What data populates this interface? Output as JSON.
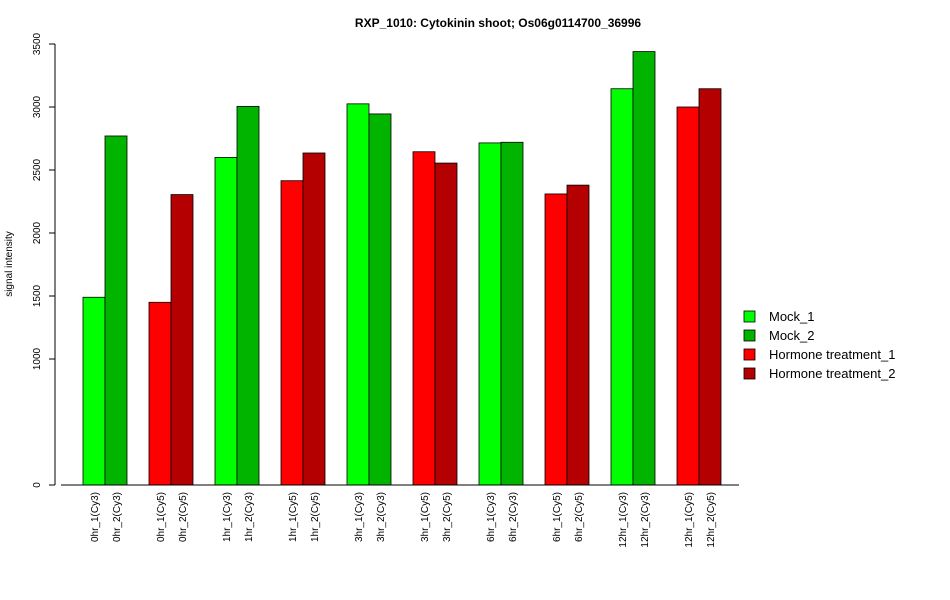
{
  "chart_data": {
    "type": "bar",
    "title": "RXP_1010: Cytokinin shoot; Os06g0114700_36996",
    "ylabel": "signal intensity",
    "xlabel": "",
    "y_ticks": [
      0,
      1000,
      1500,
      2000,
      2500,
      3000,
      3500
    ],
    "ylim": [
      0,
      3500
    ],
    "grid": false,
    "legend_position": "right",
    "bars": [
      {
        "label": "0hr_1(Cy3)",
        "value": 1490,
        "series": "Mock_1"
      },
      {
        "label": "0hr_2(Cy3)",
        "value": 2770,
        "series": "Mock_2"
      },
      {
        "label": "0hr_1(Cy5)",
        "value": 1450,
        "series": "Hormone treatment_1"
      },
      {
        "label": "0hr_2(Cy5)",
        "value": 2305,
        "series": "Hormone treatment_2"
      },
      {
        "label": "1hr_1(Cy3)",
        "value": 2600,
        "series": "Mock_1"
      },
      {
        "label": "1hr_2(Cy3)",
        "value": 3005,
        "series": "Mock_2"
      },
      {
        "label": "1hr_1(Cy5)",
        "value": 2415,
        "series": "Hormone treatment_1"
      },
      {
        "label": "1hr_2(Cy5)",
        "value": 2635,
        "series": "Hormone treatment_2"
      },
      {
        "label": "3hr_1(Cy3)",
        "value": 3025,
        "series": "Mock_1"
      },
      {
        "label": "3hr_2(Cy3)",
        "value": 2945,
        "series": "Mock_2"
      },
      {
        "label": "3hr_1(Cy5)",
        "value": 2645,
        "series": "Hormone treatment_1"
      },
      {
        "label": "3hr_2(Cy5)",
        "value": 2555,
        "series": "Hormone treatment_2"
      },
      {
        "label": "6hr_1(Cy3)",
        "value": 2715,
        "series": "Mock_1"
      },
      {
        "label": "6hr_2(Cy3)",
        "value": 2720,
        "series": "Mock_2"
      },
      {
        "label": "6hr_1(Cy5)",
        "value": 2310,
        "series": "Hormone treatment_1"
      },
      {
        "label": "6hr_2(Cy5)",
        "value": 2380,
        "series": "Hormone treatment_2"
      },
      {
        "label": "12hr_1(Cy3)",
        "value": 3145,
        "series": "Mock_1"
      },
      {
        "label": "12hr_2(Cy3)",
        "value": 3440,
        "series": "Mock_2"
      },
      {
        "label": "12hr_1(Cy5)",
        "value": 3000,
        "series": "Hormone treatment_1"
      },
      {
        "label": "12hr_2(Cy5)",
        "value": 3145,
        "series": "Hormone treatment_2"
      }
    ],
    "legend": [
      {
        "name": "Mock_1",
        "color": "#00ff00"
      },
      {
        "name": "Mock_2",
        "color": "#00b400"
      },
      {
        "name": "Hormone treatment_1",
        "color": "#ff0000"
      },
      {
        "name": "Hormone treatment_2",
        "color": "#b40000"
      }
    ]
  }
}
